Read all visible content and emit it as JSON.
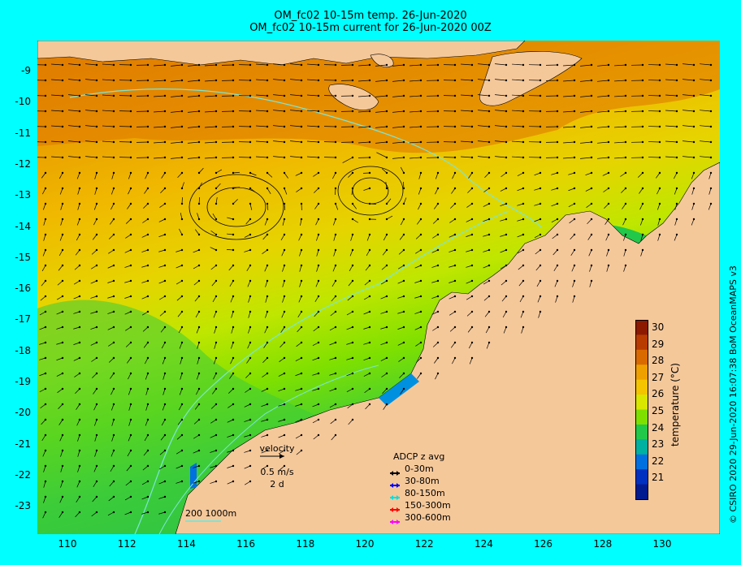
{
  "title_line1": "OM_fc02 10-15m temp. 26-Jun-2020",
  "title_line2": "OM_fc02 10-15m current for 26-Jun-2020 00Z",
  "y_ticks": [
    "-9",
    "-10",
    "-11",
    "-12",
    "-13",
    "-14",
    "-15",
    "-16",
    "-17",
    "-18",
    "-19",
    "-20",
    "-21",
    "-22",
    "-23"
  ],
  "x_ticks": [
    "110",
    "112",
    "114",
    "116",
    "118",
    "120",
    "122",
    "124",
    "126",
    "128",
    "130"
  ],
  "colorbar": {
    "label": "temperature (°C)",
    "ticks": [
      "30",
      "29",
      "28",
      "27",
      "26",
      "25",
      "24",
      "23",
      "22",
      "21"
    ],
    "colors": [
      "#8b1a00",
      "#b83c00",
      "#d96a00",
      "#eea000",
      "#f4c400",
      "#d8e600",
      "#7fe000",
      "#22c84a",
      "#00b0a0",
      "#0070e0",
      "#0030c0",
      "#001a90"
    ]
  },
  "velocity_key": {
    "label": "velocity",
    "speed": "0.5 m/s",
    "duration": "2 d"
  },
  "adcp_legend": {
    "title": "ADCP z avg",
    "items": [
      {
        "label": "0-30m",
        "color": "#000000"
      },
      {
        "label": "30-80m",
        "color": "#0000ff"
      },
      {
        "label": "80-150m",
        "color": "#00e0e0"
      },
      {
        "label": "150-300m",
        "color": "#ff0000"
      },
      {
        "label": "300-600m",
        "color": "#ff00ff"
      }
    ]
  },
  "scale_text": "200  1000m",
  "credit": "© CSIRO 2020   29-Jun-2020 16:07:38 BoM OceanMAPS v3",
  "colors": {
    "frame": "#00ffff",
    "land": "#f5c89a",
    "isobath": "#7be6d8"
  }
}
